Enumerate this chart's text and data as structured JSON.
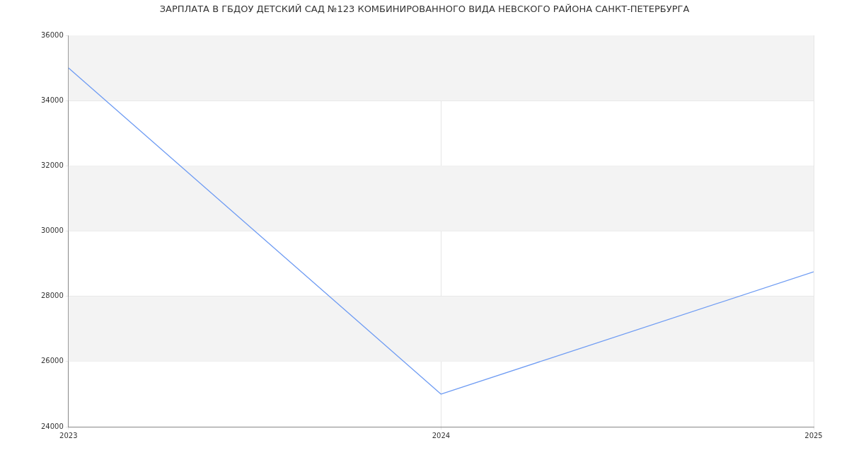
{
  "chart_data": {
    "type": "line",
    "title": "ЗАРПЛАТА В ГБДОУ ДЕТСКИЙ САД №123 КОМБИНИРОВАННОГО ВИДА НЕВСКОГО РАЙОНА САНКТ-ПЕТЕРБУРГА",
    "x": [
      2023,
      2024,
      2025
    ],
    "series": [
      {
        "color": "#6f9cf3",
        "values": [
          35000,
          25000,
          28750
        ]
      }
    ],
    "xlim": [
      2023,
      2025
    ],
    "xticks": [
      2023,
      2024,
      2025
    ],
    "ylim": [
      24000,
      36000
    ],
    "yticks": [
      24000,
      26000,
      28000,
      30000,
      32000,
      34000,
      36000
    ],
    "grid": true,
    "legend": false,
    "marker": "none",
    "line_style": "solid"
  }
}
